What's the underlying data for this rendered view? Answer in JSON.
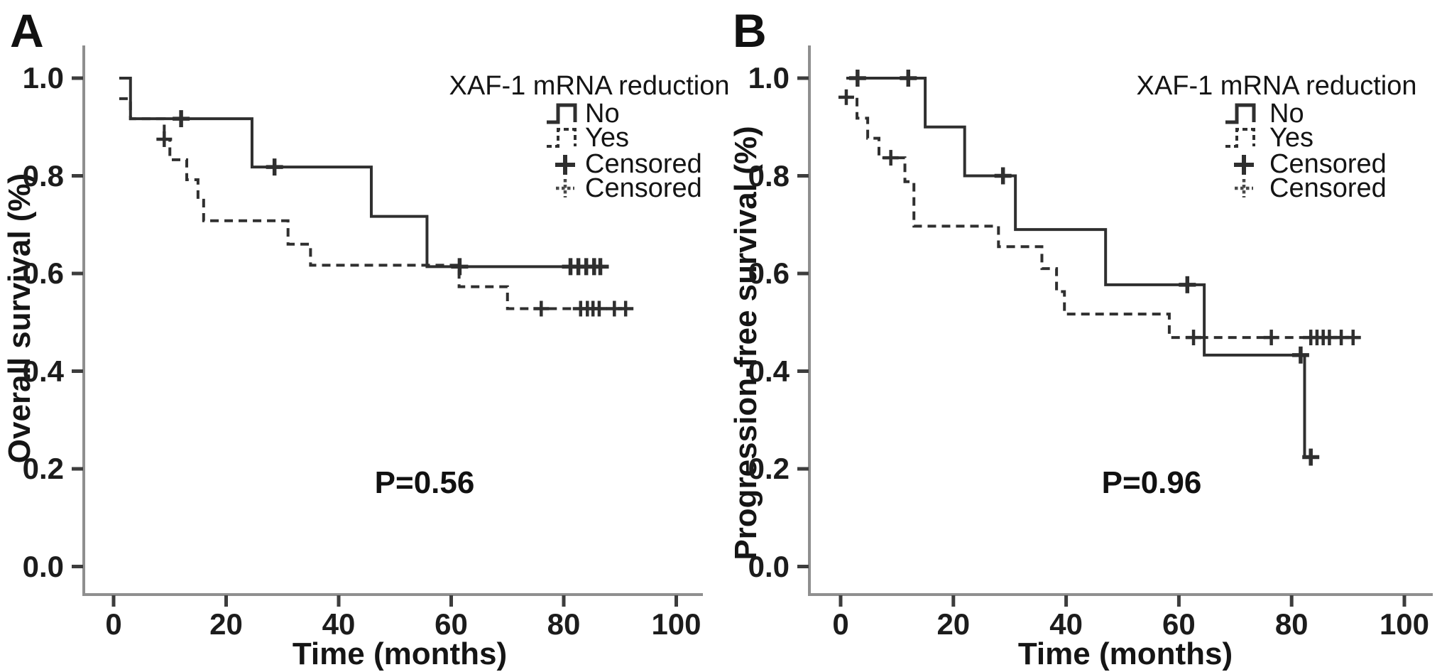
{
  "colors": {
    "curve": "#2f2f2f",
    "axis": "#8f8f8f",
    "tick": "#3d3d3d",
    "text": "#111111",
    "background": "#ffffff"
  },
  "chart_data": [
    {
      "type": "step-line",
      "panel_label": "A",
      "title": "",
      "xlabel": "Time (months)",
      "ylabel": "Overall survival (%)",
      "p_value_label": "P=0.56",
      "xlim": [
        0,
        100
      ],
      "ylim": [
        0.0,
        1.0
      ],
      "xticks": [
        0,
        20,
        40,
        60,
        80,
        100
      ],
      "xtick_labels": [
        "0",
        "20",
        "40",
        "60",
        "80",
        "100"
      ],
      "yticks": [
        1.0,
        0.8,
        0.6,
        0.4,
        0.2,
        0.0
      ],
      "ytick_labels": [
        "1.0",
        "0.8",
        "0.6",
        "0.4",
        "0.2",
        "0.0"
      ],
      "legend": {
        "title": "XAF-1 mRNA reduction",
        "items": [
          {
            "label": "No",
            "marker": "solid-step-line"
          },
          {
            "label": "Yes",
            "marker": "dashed-step-line"
          },
          {
            "label": "Censored",
            "marker": "solid-plus"
          },
          {
            "label": "Censored",
            "marker": "dashed-plus"
          }
        ]
      },
      "series": [
        {
          "name": "No",
          "line": "solid",
          "start": [
            1,
            1.0
          ],
          "drops": [
            [
              3,
              0.917
            ],
            [
              24.6,
              0.818
            ],
            [
              45.8,
              0.717
            ],
            [
              55.7,
              0.614
            ]
          ],
          "end_time": 87.5,
          "censored": [
            [
              12,
              0.917
            ],
            [
              28.6,
              0.818
            ],
            [
              61.5,
              0.614
            ],
            [
              81.2,
              0.614
            ],
            [
              82.6,
              0.614
            ],
            [
              84.0,
              0.614
            ],
            [
              85.4,
              0.614
            ],
            [
              86.5,
              0.614
            ]
          ]
        },
        {
          "name": "Yes",
          "line": "dashed",
          "start": [
            1,
            0.958
          ],
          "drops": [
            [
              3,
              0.917
            ],
            [
              9,
              0.875
            ],
            [
              10,
              0.833
            ],
            [
              13,
              0.792
            ],
            [
              15,
              0.75
            ],
            [
              16,
              0.708
            ],
            [
              31,
              0.66
            ],
            [
              35,
              0.617
            ],
            [
              61.4,
              0.573
            ],
            [
              70,
              0.528
            ]
          ],
          "end_time": 92,
          "censored": [
            [
              9,
              0.875
            ],
            [
              76,
              0.528
            ],
            [
              83,
              0.528
            ],
            [
              84.2,
              0.528
            ],
            [
              85.2,
              0.528
            ],
            [
              86.3,
              0.528
            ],
            [
              89,
              0.528
            ],
            [
              91,
              0.528
            ]
          ]
        }
      ]
    },
    {
      "type": "step-line",
      "panel_label": "B",
      "title": "",
      "xlabel": "Time (months)",
      "ylabel": "Progression-free survival (%)",
      "p_value_label": "P=0.96",
      "xlim": [
        0,
        100
      ],
      "ylim": [
        0.0,
        1.0
      ],
      "xticks": [
        0,
        20,
        40,
        60,
        80,
        100
      ],
      "xtick_labels": [
        "0",
        "20",
        "40",
        "60",
        "80",
        "100"
      ],
      "yticks": [
        1.0,
        0.8,
        0.6,
        0.4,
        0.2,
        0.0
      ],
      "ytick_labels": [
        "1.0",
        "0.8",
        "0.6",
        "0.4",
        "0.2",
        "0.0"
      ],
      "legend": {
        "title": "XAF-1 mRNA reduction",
        "items": [
          {
            "label": "No",
            "marker": "solid-step-line"
          },
          {
            "label": "Yes",
            "marker": "dashed-step-line"
          },
          {
            "label": "Censored",
            "marker": "solid-plus"
          },
          {
            "label": "Censored",
            "marker": "dashed-plus"
          }
        ]
      },
      "series": [
        {
          "name": "No",
          "line": "solid",
          "start": [
            1,
            1.0
          ],
          "drops": [
            [
              15,
              0.9
            ],
            [
              22,
              0.8
            ],
            [
              31,
              0.69
            ],
            [
              47,
              0.577
            ],
            [
              64.5,
              0.433
            ],
            [
              82.3,
              0.224
            ]
          ],
          "end_time": 84,
          "censored": [
            [
              3,
              1.0
            ],
            [
              12,
              1.0
            ],
            [
              28.8,
              0.8
            ],
            [
              61.5,
              0.577
            ],
            [
              81.6,
              0.433
            ],
            [
              83.4,
              0.224
            ]
          ]
        },
        {
          "name": "Yes",
          "line": "dashed",
          "start": [
            0.5,
            0.961
          ],
          "drops": [
            [
              2.9,
              0.918
            ],
            [
              4.8,
              0.877
            ],
            [
              6.8,
              0.837
            ],
            [
              11.4,
              0.788
            ],
            [
              13,
              0.697
            ],
            [
              28,
              0.655
            ],
            [
              35.7,
              0.61
            ],
            [
              38.3,
              0.563
            ],
            [
              39.7,
              0.517
            ],
            [
              58.3,
              0.469
            ]
          ],
          "end_time": 92,
          "censored": [
            [
              1,
              0.961
            ],
            [
              8.9,
              0.837
            ],
            [
              62.6,
              0.469
            ],
            [
              76.4,
              0.469
            ],
            [
              83.4,
              0.469
            ],
            [
              84.5,
              0.469
            ],
            [
              85.6,
              0.469
            ],
            [
              86.7,
              0.469
            ],
            [
              88.8,
              0.469
            ],
            [
              90.9,
              0.469
            ]
          ]
        }
      ]
    }
  ]
}
